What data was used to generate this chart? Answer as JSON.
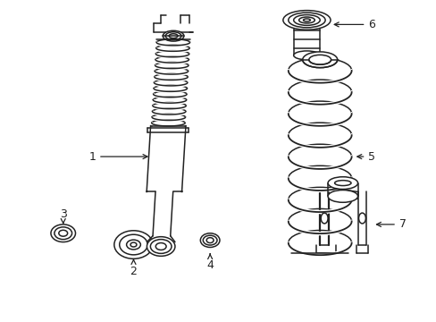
{
  "bg_color": "#ffffff",
  "line_color": "#222222",
  "line_width": 1.1,
  "fig_width": 4.89,
  "fig_height": 3.6,
  "dpi": 100
}
